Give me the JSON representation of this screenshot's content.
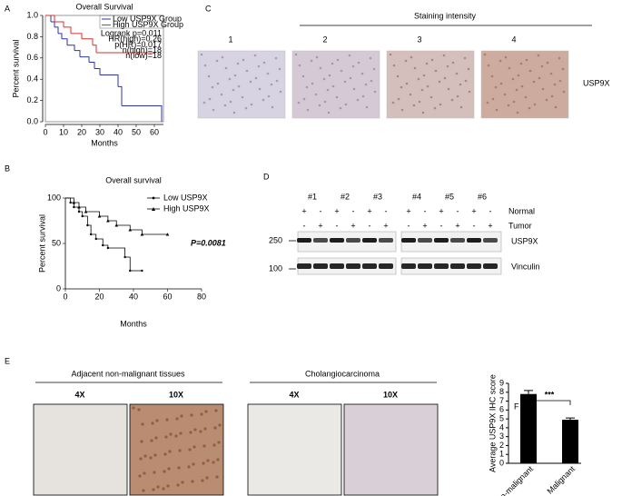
{
  "panel_labels": [
    "A",
    "B",
    "C",
    "D",
    "E",
    "F"
  ],
  "chart_data": [
    {
      "type": "survival",
      "title": "Overall Survival",
      "x_label": "Months",
      "y_label": "Percent survival",
      "xlim": [
        0,
        65
      ],
      "xticks": [
        0,
        10,
        20,
        30,
        40,
        50,
        60
      ],
      "ylim": [
        0,
        1
      ],
      "yticks": [
        {
          "value": 0,
          "label": "0.0"
        },
        {
          "value": 0.2,
          "label": "0.2"
        },
        {
          "value": 0.4,
          "label": "0.4"
        },
        {
          "value": 0.6,
          "label": "0.6"
        },
        {
          "value": 0.8,
          "label": "0.8"
        },
        {
          "value": 1,
          "label": "1.0"
        }
      ],
      "legend": "upper right",
      "series": [
        {
          "name": "Low USP9X Group",
          "color": "#2b35a8",
          "x": [
            0,
            3,
            5,
            7,
            9,
            12,
            16,
            19,
            24,
            27,
            30,
            40,
            42,
            64
          ],
          "values": [
            1.0,
            0.94,
            0.89,
            0.83,
            0.78,
            0.72,
            0.67,
            0.61,
            0.56,
            0.5,
            0.44,
            0.33,
            0.15,
            0.0
          ]
        },
        {
          "name": "High USP9X Group",
          "color": "#d8312c",
          "x": [
            0,
            5,
            10,
            14,
            20,
            26,
            28,
            60
          ],
          "values": [
            1.0,
            0.94,
            0.89,
            0.83,
            0.78,
            0.72,
            0.65,
            0.65
          ]
        }
      ],
      "annotations": [
        "Logrank p=0.011",
        "HR(high)=0.26",
        "p(HR)=0.017",
        "n(high)=18",
        "n(low)=18"
      ]
    },
    {
      "type": "survival",
      "title": "Overall survival",
      "x_label": "Months",
      "y_label": "Percent survival",
      "xlim": [
        0,
        80
      ],
      "xticks": [
        0,
        20,
        40,
        60,
        80
      ],
      "ylim": [
        0,
        100
      ],
      "yticks": [
        0,
        50,
        100
      ],
      "legend": "upper right",
      "series": [
        {
          "name": "Low USP9X",
          "color": "#000000",
          "x": [
            0,
            3,
            5,
            8,
            10,
            13,
            15,
            18,
            22,
            25,
            35,
            38,
            45
          ],
          "values": [
            100,
            95,
            90,
            85,
            80,
            70,
            60,
            55,
            48,
            45,
            35,
            20,
            20
          ]
        },
        {
          "name": "High USP9X",
          "color": "#000000",
          "x": [
            0,
            5,
            8,
            12,
            20,
            25,
            30,
            38,
            45,
            60
          ],
          "values": [
            100,
            95,
            90,
            85,
            80,
            75,
            70,
            65,
            60,
            60
          ]
        }
      ],
      "annotations": [
        "P=0.0081"
      ]
    },
    {
      "type": "bar",
      "y_label": "Average USP9X IHC score",
      "categories": [
        "Non-malignant",
        "Malignant"
      ],
      "values": [
        7.8,
        4.9
      ],
      "errors": [
        0.4,
        0.2
      ],
      "color": "#000000",
      "ylim": [
        0,
        9
      ],
      "yticks": [
        0,
        1,
        2,
        3,
        4,
        5,
        6,
        7,
        8,
        9
      ],
      "annotations": [
        "***"
      ]
    }
  ],
  "staining": {
    "title": "Staining intensity",
    "levels": [
      "1",
      "2",
      "3",
      "4"
    ],
    "row_label": "USP9X"
  },
  "blot": {
    "samples": [
      "#1",
      "#2",
      "#3",
      "#4",
      "#5",
      "#6"
    ],
    "rows": [
      {
        "name": "Normal",
        "signs": [
          "+",
          "-",
          "+",
          "-",
          "+",
          "-",
          "+",
          "-",
          "+",
          "-",
          "+",
          "-"
        ]
      },
      {
        "name": "Tumor",
        "signs": [
          "-",
          "+",
          "-",
          "+",
          "-",
          "+",
          "-",
          "+",
          "-",
          "+",
          "-",
          "+"
        ]
      }
    ],
    "markers": [
      "250",
      "100"
    ],
    "bands": [
      "USP9X",
      "Vinculin"
    ]
  },
  "ihc": {
    "groups": [
      {
        "title": "Adjacent non-malignant tissues",
        "magnifications": [
          "4X",
          "10X"
        ]
      },
      {
        "title": "Cholangiocarcinoma",
        "magnifications": [
          "4X",
          "10X"
        ]
      }
    ]
  }
}
